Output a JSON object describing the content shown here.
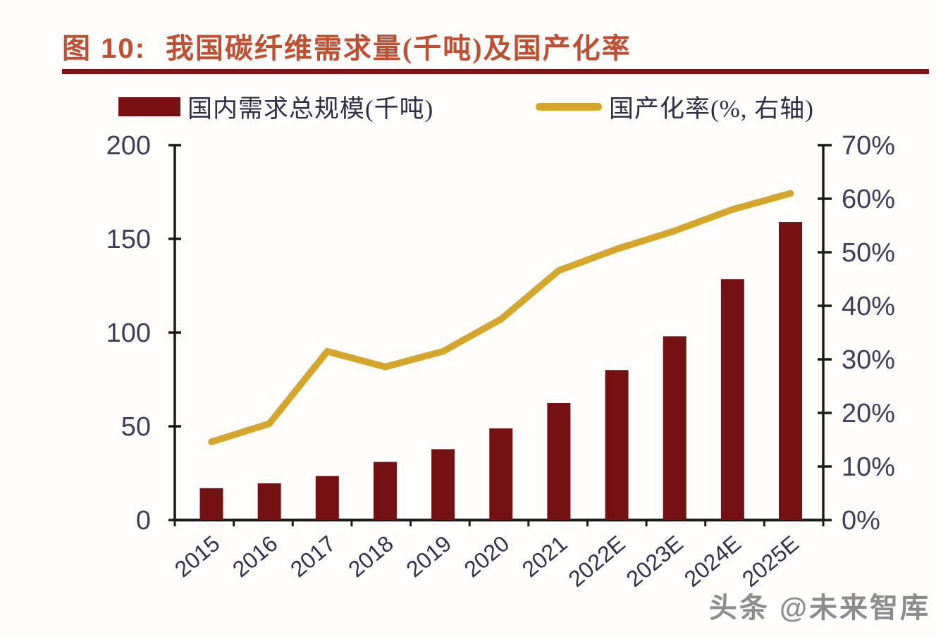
{
  "header": {
    "figure_label": "图 10:",
    "title": "我国碳纤维需求量(千吨)及国产化率",
    "title_color": "#C04F30",
    "underline_color": "#7E1416"
  },
  "legend": {
    "items": [
      {
        "label": "国内需求总规模(千吨)",
        "swatch": "bar-swatch",
        "color": "#7A1012"
      },
      {
        "label": "国产化率(%, 右轴)",
        "swatch": "line-swatch",
        "color": "#D6A62B"
      }
    ]
  },
  "chart_data": {
    "type": "bar+line combo",
    "categories": [
      "2015",
      "2016",
      "2017",
      "2018",
      "2019",
      "2020",
      "2021",
      "2022E",
      "2023E",
      "2024E",
      "2025E"
    ],
    "series": [
      {
        "name": "国内需求总规模(千吨)",
        "type": "bar",
        "axis": "left",
        "color": "#741113",
        "values": [
          17,
          19.6,
          23.5,
          31,
          37.8,
          48.9,
          62.4,
          80,
          98,
          128.5,
          159
        ]
      },
      {
        "name": "国产化率(%, 右轴)",
        "type": "line",
        "axis": "right",
        "color": "#D6A62B",
        "values": [
          14.6,
          18,
          31.5,
          28.6,
          31.5,
          37.5,
          46.6,
          50.6,
          54,
          58,
          61
        ]
      }
    ],
    "left_axis": {
      "min": 0,
      "max": 200,
      "tick_labels": [
        "0",
        "50",
        "100",
        "150",
        "200"
      ]
    },
    "right_axis": {
      "min": 0,
      "max": 70,
      "tick_labels": [
        "0%",
        "10%",
        "20%",
        "30%",
        "40%",
        "50%",
        "60%",
        "70%"
      ]
    },
    "grid": false,
    "legend_position": "top",
    "axis_color": "#1A1A1A",
    "tick_label_color": "#3E3E58",
    "x_label_color": "#32324E"
  },
  "watermark": {
    "text": "头条 @未来智库",
    "color": "#8C8C8C"
  }
}
